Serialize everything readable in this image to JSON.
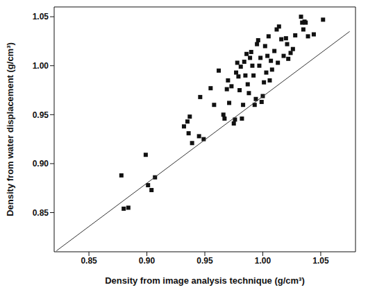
{
  "chart_data": {
    "type": "scatter",
    "x_label": "Density from image analysis technique (g/cm³)",
    "y_label": "Density from water displacement (g/cm³)",
    "xlim": [
      0.82,
      1.08
    ],
    "ylim": [
      0.81,
      1.06
    ],
    "xticks": [
      0.85,
      {
        "value": 0.9,
        "label": "0.90"
      },
      0.95,
      {
        "value": 1.0,
        "label": "1.00"
      },
      1.05
    ],
    "yticks": [
      0.85,
      {
        "value": 0.9,
        "label": "0.90"
      },
      0.95,
      {
        "value": 1.0,
        "label": "1.00"
      },
      1.05
    ],
    "grid": false,
    "series": [
      {
        "type": "scatter",
        "color": "#111111",
        "marker": "square",
        "x": [
          0.878,
          0.88,
          0.884,
          0.899,
          0.901,
          0.904,
          0.907,
          0.932,
          0.935,
          0.937,
          0.936,
          0.939,
          0.945,
          0.946,
          0.949,
          0.955,
          0.958,
          0.962,
          0.966,
          0.967,
          0.969,
          0.97,
          0.971,
          0.973,
          0.975,
          0.976,
          0.977,
          0.978,
          0.979,
          0.98,
          0.981,
          0.982,
          0.983,
          0.984,
          0.985,
          0.986,
          0.987,
          0.988,
          0.989,
          0.99,
          0.991,
          0.992,
          0.993,
          0.994,
          0.995,
          0.996,
          0.997,
          0.998,
          0.999,
          1.0,
          1.001,
          1.002,
          1.003,
          1.004,
          1.005,
          1.006,
          1.007,
          1.008,
          1.01,
          1.012,
          1.013,
          1.014,
          1.016,
          1.018,
          1.02,
          1.021,
          1.022,
          1.024,
          1.026,
          1.028,
          1.033,
          1.034,
          1.035,
          1.036,
          1.037,
          1.039,
          1.044,
          1.052
        ],
        "values": [
          0.888,
          0.854,
          0.855,
          0.909,
          0.878,
          0.873,
          0.886,
          0.938,
          0.943,
          0.948,
          0.931,
          0.921,
          0.928,
          0.968,
          0.925,
          0.977,
          0.96,
          0.995,
          0.95,
          0.946,
          0.976,
          0.985,
          0.962,
          0.979,
          0.941,
          0.945,
          0.993,
          1.003,
          0.989,
          0.975,
          0.999,
          0.946,
          0.96,
          1.004,
          0.99,
          1.012,
          0.981,
          0.972,
          1.008,
          1.014,
          1.0,
          0.99,
          0.96,
          0.966,
          1.022,
          1.026,
          1.0,
          1.008,
          0.963,
          0.969,
          0.983,
          1.02,
          0.993,
          1.01,
          1.03,
          0.985,
          1.005,
          0.996,
          1.015,
          1.037,
          1.003,
          1.04,
          1.027,
          1.01,
          1.028,
          1.022,
          1.007,
          1.013,
          1.017,
          1.031,
          1.05,
          1.044,
          1.037,
          1.045,
          1.044,
          1.03,
          1.032,
          1.047
        ]
      },
      {
        "type": "line",
        "color": "#333333",
        "line_style": "solid",
        "x": [
          0.822,
          1.075
        ],
        "values": [
          0.811,
          1.035
        ]
      }
    ]
  }
}
